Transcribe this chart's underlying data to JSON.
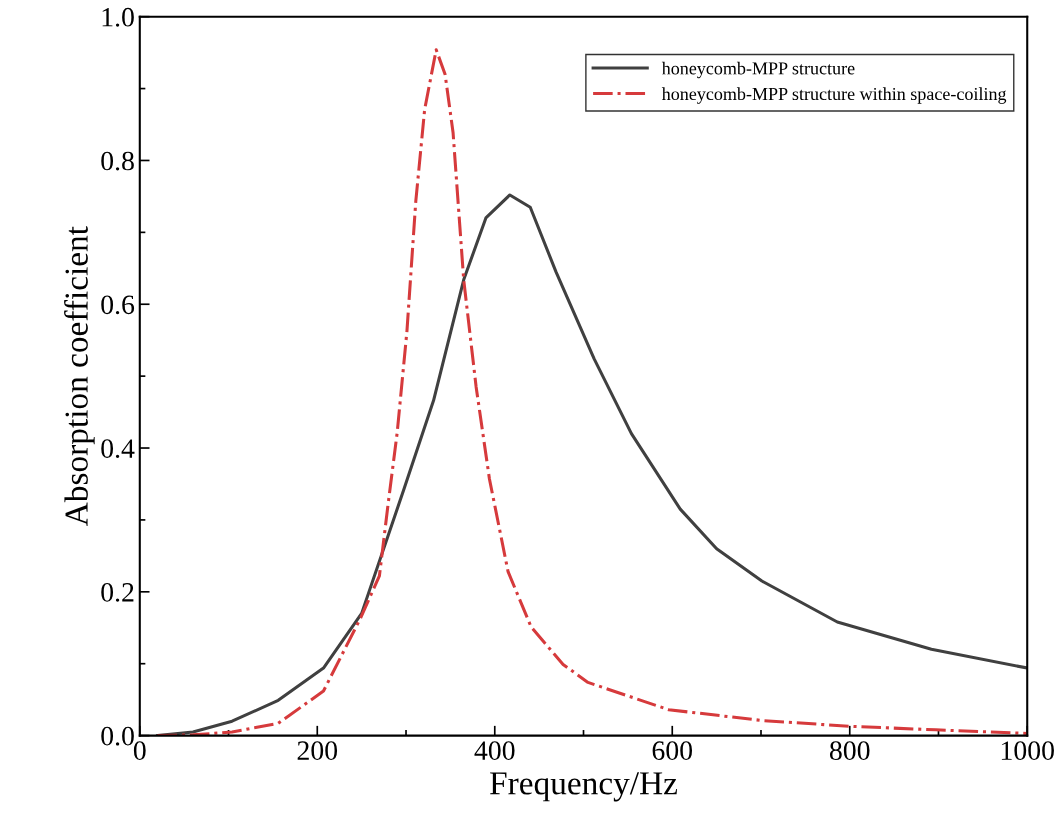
{
  "chart_data": {
    "type": "line",
    "xlabel": "Frequency/Hz",
    "ylabel": "Absorption coefficient",
    "xlim": [
      0,
      1000
    ],
    "xticks": [
      0,
      200,
      400,
      600,
      800,
      1000
    ],
    "ylim": [
      0,
      1
    ],
    "yticks": [
      {
        "value": 0,
        "label": "0.0"
      },
      {
        "value": 0.2,
        "label": "0.2"
      },
      {
        "value": 0.4,
        "label": "0.4"
      },
      {
        "value": 0.6,
        "label": "0.6"
      },
      {
        "value": 0.8,
        "label": "0.8"
      },
      {
        "value": 1,
        "label": "1.0"
      }
    ],
    "legend": "top right",
    "grid": false,
    "series": [
      {
        "name": "honeycomb-MPP structure",
        "color": "#404040",
        "line_style": "solid",
        "x": [
          20,
          60,
          104,
          156,
          207,
          250,
          298,
          331,
          365,
          390,
          417,
          440,
          469,
          512,
          554,
          609,
          650,
          701,
          786,
          892,
          1000
        ],
        "values": [
          0,
          0.005,
          0.02,
          0.049,
          0.094,
          0.17,
          0.344,
          0.466,
          0.634,
          0.72,
          0.752,
          0.735,
          0.645,
          0.524,
          0.42,
          0.315,
          0.26,
          0.215,
          0.158,
          0.12,
          0.094
        ]
      },
      {
        "name": "honeycomb-MPP structure within space-coiling",
        "color": "#d63a3c",
        "line_style": "dashdot",
        "x": [
          20,
          60,
          104,
          156,
          207,
          249,
          270,
          280,
          290,
          301,
          311,
          321,
          334,
          344,
          353,
          365,
          379,
          394,
          415,
          441,
          477,
          505,
          596,
          701,
          799,
          897,
          1000
        ],
        "values": [
          0,
          0.001,
          0.005,
          0.017,
          0.062,
          0.164,
          0.222,
          0.324,
          0.421,
          0.562,
          0.743,
          0.871,
          0.954,
          0.92,
          0.839,
          0.634,
          0.485,
          0.357,
          0.228,
          0.151,
          0.099,
          0.074,
          0.036,
          0.021,
          0.013,
          0.008,
          0.003
        ]
      }
    ]
  }
}
